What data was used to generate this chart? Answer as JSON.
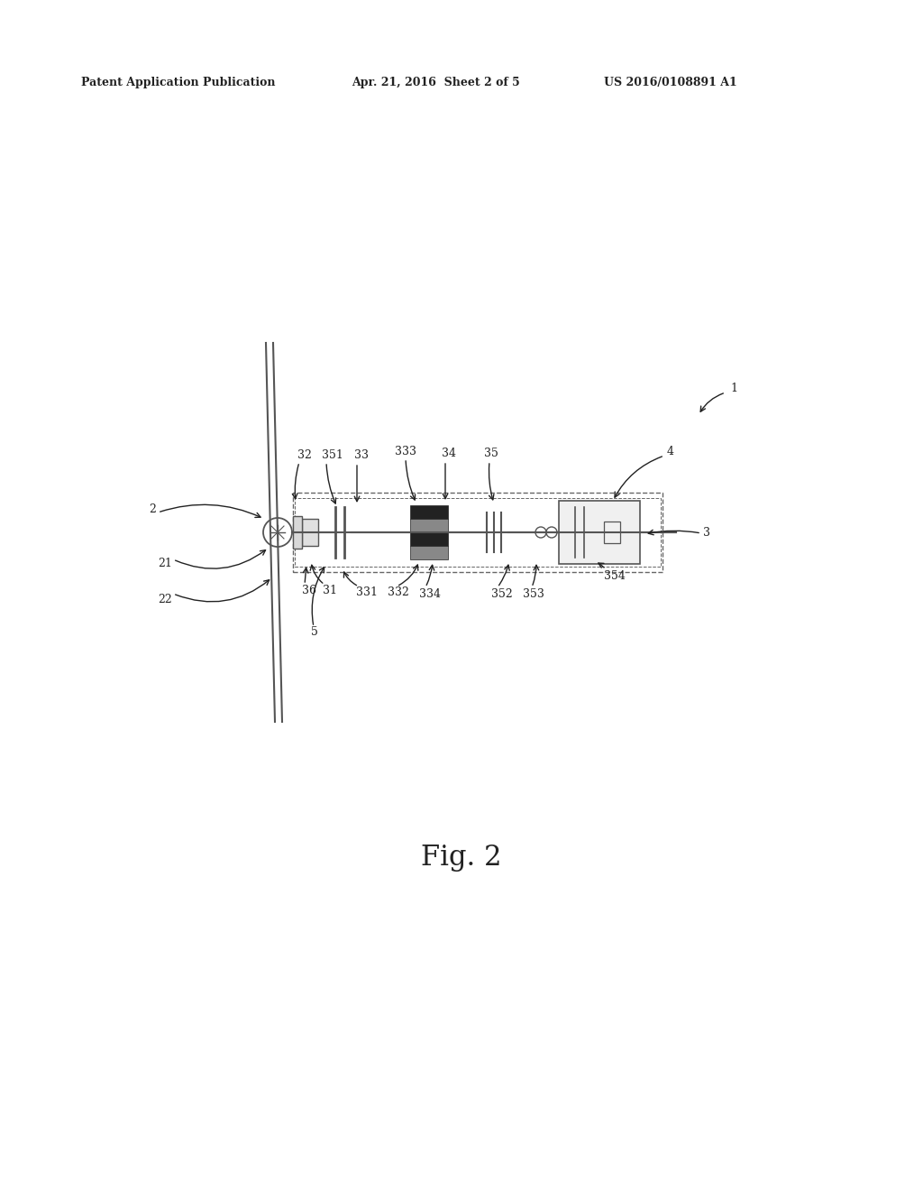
{
  "bg_color": "#ffffff",
  "header_left": "Patent Application Publication",
  "header_mid": "Apr. 21, 2016  Sheet 2 of 5",
  "header_right": "US 2016/0108891 A1",
  "fig_label": "Fig. 2",
  "line_color": "#555555",
  "dark_color": "#222222",
  "light_gray": "#aaaaaa",
  "dashed_color": "#666666"
}
